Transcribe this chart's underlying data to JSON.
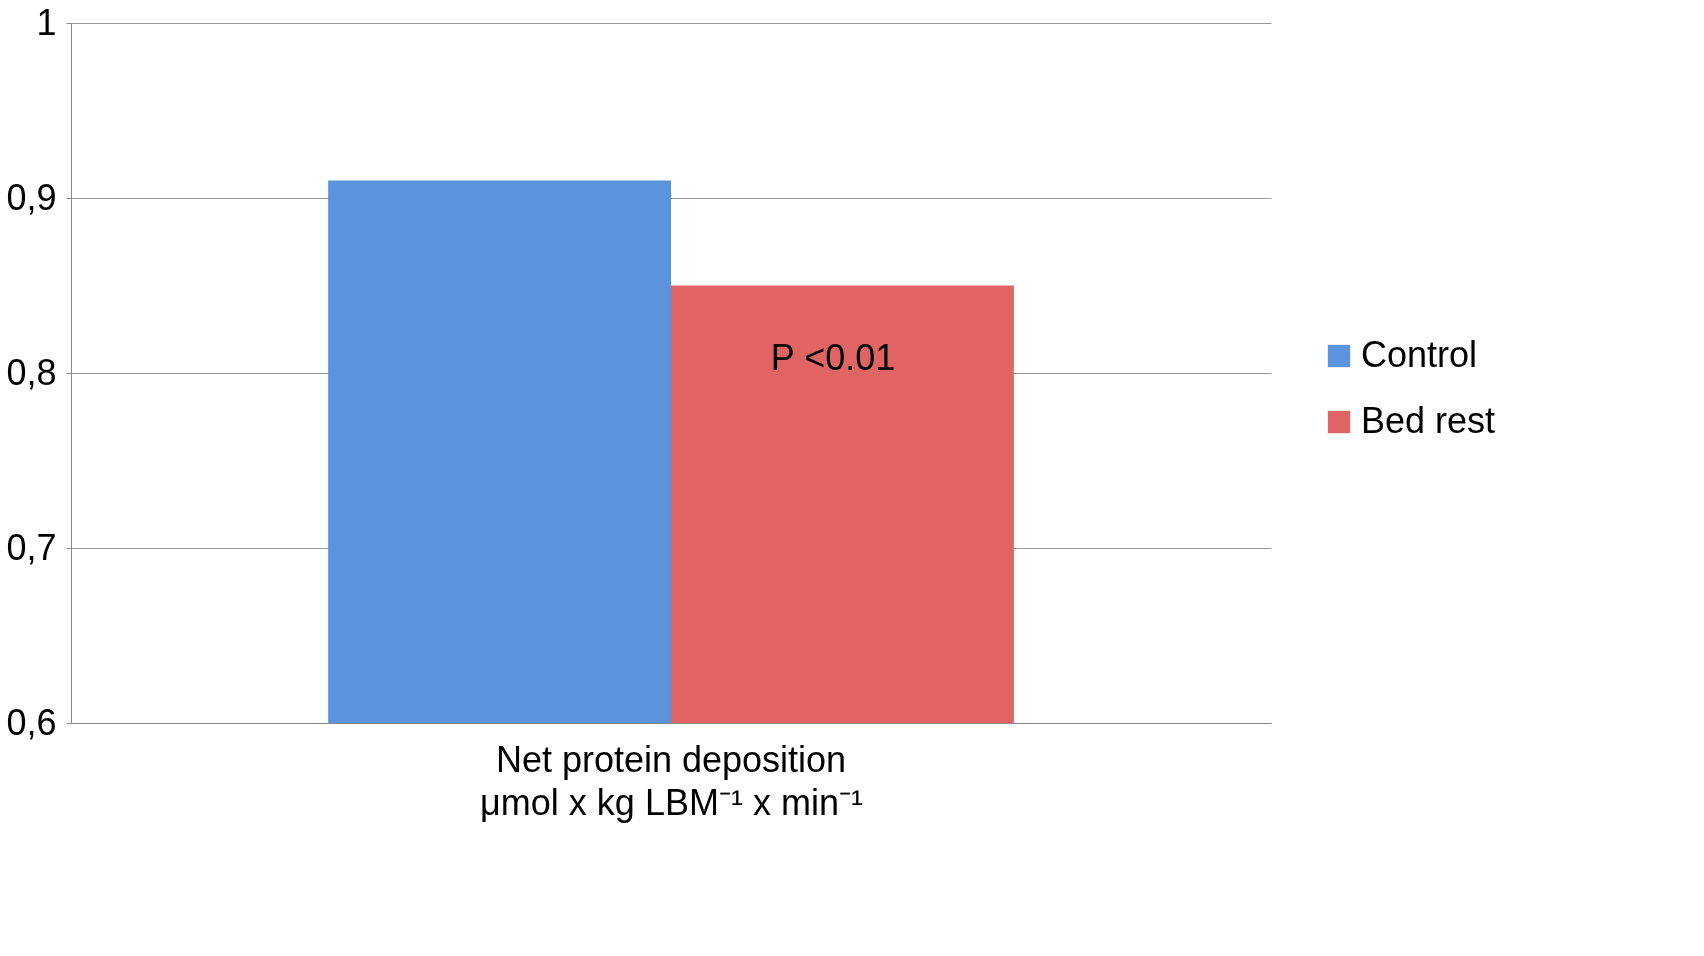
{
  "chart_data": {
    "type": "bar",
    "categories": [
      "Net protein deposition"
    ],
    "xlabel": "μmol x kg LBM⁻¹ x min⁻¹",
    "series": [
      {
        "name": "Control",
        "color": "#5b93dc",
        "values": [
          0.91
        ]
      },
      {
        "name": "Bed rest",
        "color": "#e06464",
        "values": [
          0.85
        ]
      }
    ],
    "ylim": [
      0.6,
      1
    ],
    "yticks": [
      {
        "value": 0.6,
        "label": "0,6"
      },
      {
        "value": 0.7,
        "label": "0,7"
      },
      {
        "value": 0.8,
        "label": "0,8"
      },
      {
        "value": 0.9,
        "label": "0,9"
      },
      {
        "value": 1,
        "label": "1"
      }
    ],
    "grid": "y",
    "legend": "right",
    "annotations": [
      "P <0.01"
    ]
  }
}
